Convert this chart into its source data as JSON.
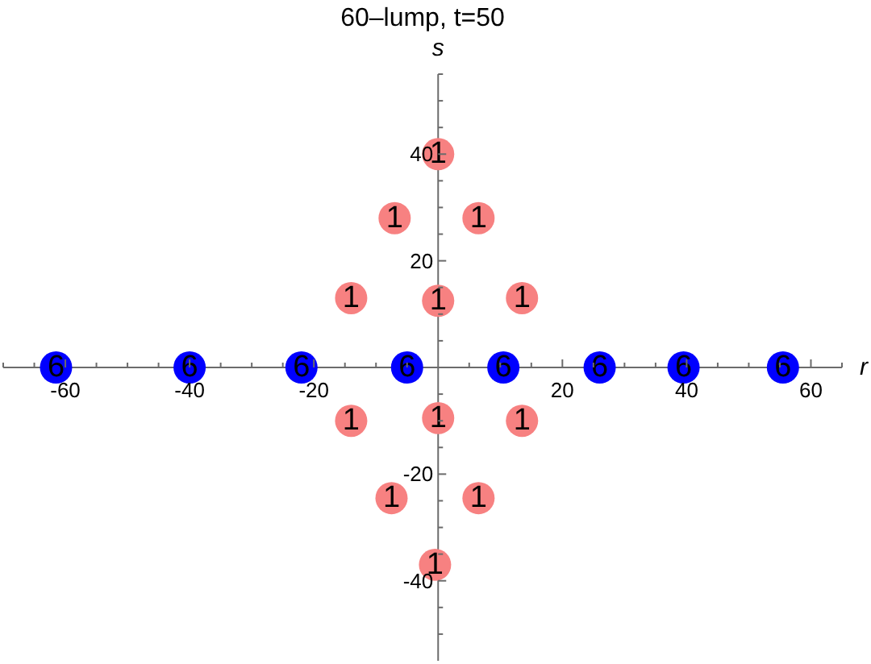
{
  "chart_data": {
    "type": "scatter",
    "title": "60–lump, t=50",
    "xlabel": "r",
    "ylabel": "s",
    "xlim": [
      -70,
      65
    ],
    "ylim": [
      -55,
      55
    ],
    "xticks": [
      {
        "value": -70,
        "label": null
      },
      {
        "value": -65,
        "label": null
      },
      -60,
      {
        "value": -55,
        "label": null
      },
      {
        "value": -50,
        "label": null
      },
      {
        "value": -45,
        "label": null
      },
      -40,
      {
        "value": -35,
        "label": null
      },
      {
        "value": -30,
        "label": null
      },
      {
        "value": -25,
        "label": null
      },
      -20,
      {
        "value": -15,
        "label": null
      },
      {
        "value": -10,
        "label": null
      },
      {
        "value": -5,
        "label": null
      },
      {
        "value": 5,
        "label": null
      },
      {
        "value": 10,
        "label": null
      },
      {
        "value": 15,
        "label": null
      },
      20,
      {
        "value": 25,
        "label": null
      },
      {
        "value": 30,
        "label": null
      },
      {
        "value": 35,
        "label": null
      },
      40,
      {
        "value": 45,
        "label": null
      },
      {
        "value": 50,
        "label": null
      },
      {
        "value": 55,
        "label": null
      },
      60,
      {
        "value": 65,
        "label": null
      }
    ],
    "yticks": [
      {
        "value": -50,
        "label": null
      },
      {
        "value": -45,
        "label": null
      },
      -40,
      {
        "value": -35,
        "label": null
      },
      {
        "value": -30,
        "label": null
      },
      {
        "value": -25,
        "label": null
      },
      -20,
      {
        "value": -15,
        "label": null
      },
      {
        "value": -10,
        "label": null
      },
      {
        "value": -5,
        "label": null
      },
      {
        "value": 5,
        "label": null
      },
      {
        "value": 10,
        "label": null
      },
      {
        "value": 15,
        "label": null
      },
      20,
      {
        "value": 25,
        "label": null
      },
      {
        "value": 30,
        "label": null
      },
      {
        "value": 35,
        "label": null
      },
      40,
      {
        "value": 45,
        "label": null
      },
      {
        "value": 50,
        "label": null
      },
      {
        "value": 55,
        "label": null
      }
    ],
    "marker": "circle",
    "series": [
      {
        "color": "#f78181",
        "x": [
          0,
          -7,
          6.5,
          -14,
          0,
          13.5,
          -14,
          0,
          13.5,
          -7.5,
          6.5,
          -0.5
        ],
        "values": [
          40,
          28,
          28,
          13,
          12.5,
          13,
          -10,
          -9.5,
          -10,
          -24.5,
          -24.5,
          -37
        ]
      },
      {
        "color": "#0000ff",
        "x": [
          -61.5,
          -40,
          -22,
          -5,
          10.5,
          26,
          39.5,
          55.5
        ],
        "values": [
          0,
          0,
          0,
          0,
          0,
          0,
          0,
          0
        ]
      }
    ],
    "annotations": [
      {
        "text": "1",
        "x": 0,
        "y": 40
      },
      {
        "text": "1",
        "x": -7,
        "y": 28
      },
      {
        "text": "1",
        "x": 6.5,
        "y": 28
      },
      {
        "text": "1",
        "x": -14,
        "y": 13
      },
      {
        "text": "1",
        "x": 0,
        "y": 12.5
      },
      {
        "text": "1",
        "x": 13.5,
        "y": 13
      },
      {
        "text": "1",
        "x": -14,
        "y": -10
      },
      {
        "text": "1",
        "x": 0,
        "y": -9.5
      },
      {
        "text": "1",
        "x": 13.5,
        "y": -10
      },
      {
        "text": "1",
        "x": -7.5,
        "y": -24.5
      },
      {
        "text": "1",
        "x": 6.5,
        "y": -24.5
      },
      {
        "text": "1",
        "x": -0.5,
        "y": -37
      },
      {
        "text": "6",
        "x": -61.5,
        "y": 0
      },
      {
        "text": "6",
        "x": -40,
        "y": 0
      },
      {
        "text": "6",
        "x": -22,
        "y": 0
      },
      {
        "text": "6",
        "x": -5,
        "y": 0
      },
      {
        "text": "6",
        "x": 10.5,
        "y": 0
      },
      {
        "text": "6",
        "x": 26,
        "y": 0
      },
      {
        "text": "6",
        "x": 39.5,
        "y": 0
      },
      {
        "text": "6",
        "x": 55.5,
        "y": 0
      }
    ]
  }
}
